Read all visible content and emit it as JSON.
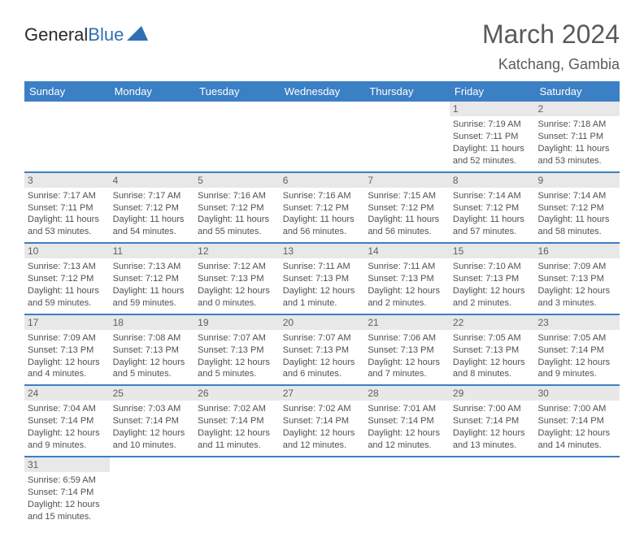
{
  "brand": {
    "part1": "General",
    "part2": "Blue"
  },
  "title": "March 2024",
  "location": "Katchang, Gambia",
  "colors": {
    "header_bg": "#3b7fc4",
    "header_fg": "#ffffff",
    "daynum_bg": "#e8e8e8",
    "text": "#505050"
  },
  "fonts": {
    "title_size": 32,
    "location_size": 18,
    "header_size": 13,
    "cell_size": 11
  },
  "dayNames": [
    "Sunday",
    "Monday",
    "Tuesday",
    "Wednesday",
    "Thursday",
    "Friday",
    "Saturday"
  ],
  "weeks": [
    [
      null,
      null,
      null,
      null,
      null,
      {
        "num": "1",
        "sunrise": "Sunrise: 7:19 AM",
        "sunset": "Sunset: 7:11 PM",
        "daylight": "Daylight: 11 hours and 52 minutes."
      },
      {
        "num": "2",
        "sunrise": "Sunrise: 7:18 AM",
        "sunset": "Sunset: 7:11 PM",
        "daylight": "Daylight: 11 hours and 53 minutes."
      }
    ],
    [
      {
        "num": "3",
        "sunrise": "Sunrise: 7:17 AM",
        "sunset": "Sunset: 7:11 PM",
        "daylight": "Daylight: 11 hours and 53 minutes."
      },
      {
        "num": "4",
        "sunrise": "Sunrise: 7:17 AM",
        "sunset": "Sunset: 7:12 PM",
        "daylight": "Daylight: 11 hours and 54 minutes."
      },
      {
        "num": "5",
        "sunrise": "Sunrise: 7:16 AM",
        "sunset": "Sunset: 7:12 PM",
        "daylight": "Daylight: 11 hours and 55 minutes."
      },
      {
        "num": "6",
        "sunrise": "Sunrise: 7:16 AM",
        "sunset": "Sunset: 7:12 PM",
        "daylight": "Daylight: 11 hours and 56 minutes."
      },
      {
        "num": "7",
        "sunrise": "Sunrise: 7:15 AM",
        "sunset": "Sunset: 7:12 PM",
        "daylight": "Daylight: 11 hours and 56 minutes."
      },
      {
        "num": "8",
        "sunrise": "Sunrise: 7:14 AM",
        "sunset": "Sunset: 7:12 PM",
        "daylight": "Daylight: 11 hours and 57 minutes."
      },
      {
        "num": "9",
        "sunrise": "Sunrise: 7:14 AM",
        "sunset": "Sunset: 7:12 PM",
        "daylight": "Daylight: 11 hours and 58 minutes."
      }
    ],
    [
      {
        "num": "10",
        "sunrise": "Sunrise: 7:13 AM",
        "sunset": "Sunset: 7:12 PM",
        "daylight": "Daylight: 11 hours and 59 minutes."
      },
      {
        "num": "11",
        "sunrise": "Sunrise: 7:13 AM",
        "sunset": "Sunset: 7:12 PM",
        "daylight": "Daylight: 11 hours and 59 minutes."
      },
      {
        "num": "12",
        "sunrise": "Sunrise: 7:12 AM",
        "sunset": "Sunset: 7:13 PM",
        "daylight": "Daylight: 12 hours and 0 minutes."
      },
      {
        "num": "13",
        "sunrise": "Sunrise: 7:11 AM",
        "sunset": "Sunset: 7:13 PM",
        "daylight": "Daylight: 12 hours and 1 minute."
      },
      {
        "num": "14",
        "sunrise": "Sunrise: 7:11 AM",
        "sunset": "Sunset: 7:13 PM",
        "daylight": "Daylight: 12 hours and 2 minutes."
      },
      {
        "num": "15",
        "sunrise": "Sunrise: 7:10 AM",
        "sunset": "Sunset: 7:13 PM",
        "daylight": "Daylight: 12 hours and 2 minutes."
      },
      {
        "num": "16",
        "sunrise": "Sunrise: 7:09 AM",
        "sunset": "Sunset: 7:13 PM",
        "daylight": "Daylight: 12 hours and 3 minutes."
      }
    ],
    [
      {
        "num": "17",
        "sunrise": "Sunrise: 7:09 AM",
        "sunset": "Sunset: 7:13 PM",
        "daylight": "Daylight: 12 hours and 4 minutes."
      },
      {
        "num": "18",
        "sunrise": "Sunrise: 7:08 AM",
        "sunset": "Sunset: 7:13 PM",
        "daylight": "Daylight: 12 hours and 5 minutes."
      },
      {
        "num": "19",
        "sunrise": "Sunrise: 7:07 AM",
        "sunset": "Sunset: 7:13 PM",
        "daylight": "Daylight: 12 hours and 5 minutes."
      },
      {
        "num": "20",
        "sunrise": "Sunrise: 7:07 AM",
        "sunset": "Sunset: 7:13 PM",
        "daylight": "Daylight: 12 hours and 6 minutes."
      },
      {
        "num": "21",
        "sunrise": "Sunrise: 7:06 AM",
        "sunset": "Sunset: 7:13 PM",
        "daylight": "Daylight: 12 hours and 7 minutes."
      },
      {
        "num": "22",
        "sunrise": "Sunrise: 7:05 AM",
        "sunset": "Sunset: 7:13 PM",
        "daylight": "Daylight: 12 hours and 8 minutes."
      },
      {
        "num": "23",
        "sunrise": "Sunrise: 7:05 AM",
        "sunset": "Sunset: 7:14 PM",
        "daylight": "Daylight: 12 hours and 9 minutes."
      }
    ],
    [
      {
        "num": "24",
        "sunrise": "Sunrise: 7:04 AM",
        "sunset": "Sunset: 7:14 PM",
        "daylight": "Daylight: 12 hours and 9 minutes."
      },
      {
        "num": "25",
        "sunrise": "Sunrise: 7:03 AM",
        "sunset": "Sunset: 7:14 PM",
        "daylight": "Daylight: 12 hours and 10 minutes."
      },
      {
        "num": "26",
        "sunrise": "Sunrise: 7:02 AM",
        "sunset": "Sunset: 7:14 PM",
        "daylight": "Daylight: 12 hours and 11 minutes."
      },
      {
        "num": "27",
        "sunrise": "Sunrise: 7:02 AM",
        "sunset": "Sunset: 7:14 PM",
        "daylight": "Daylight: 12 hours and 12 minutes."
      },
      {
        "num": "28",
        "sunrise": "Sunrise: 7:01 AM",
        "sunset": "Sunset: 7:14 PM",
        "daylight": "Daylight: 12 hours and 12 minutes."
      },
      {
        "num": "29",
        "sunrise": "Sunrise: 7:00 AM",
        "sunset": "Sunset: 7:14 PM",
        "daylight": "Daylight: 12 hours and 13 minutes."
      },
      {
        "num": "30",
        "sunrise": "Sunrise: 7:00 AM",
        "sunset": "Sunset: 7:14 PM",
        "daylight": "Daylight: 12 hours and 14 minutes."
      }
    ],
    [
      {
        "num": "31",
        "sunrise": "Sunrise: 6:59 AM",
        "sunset": "Sunset: 7:14 PM",
        "daylight": "Daylight: 12 hours and 15 minutes."
      },
      null,
      null,
      null,
      null,
      null,
      null
    ]
  ]
}
